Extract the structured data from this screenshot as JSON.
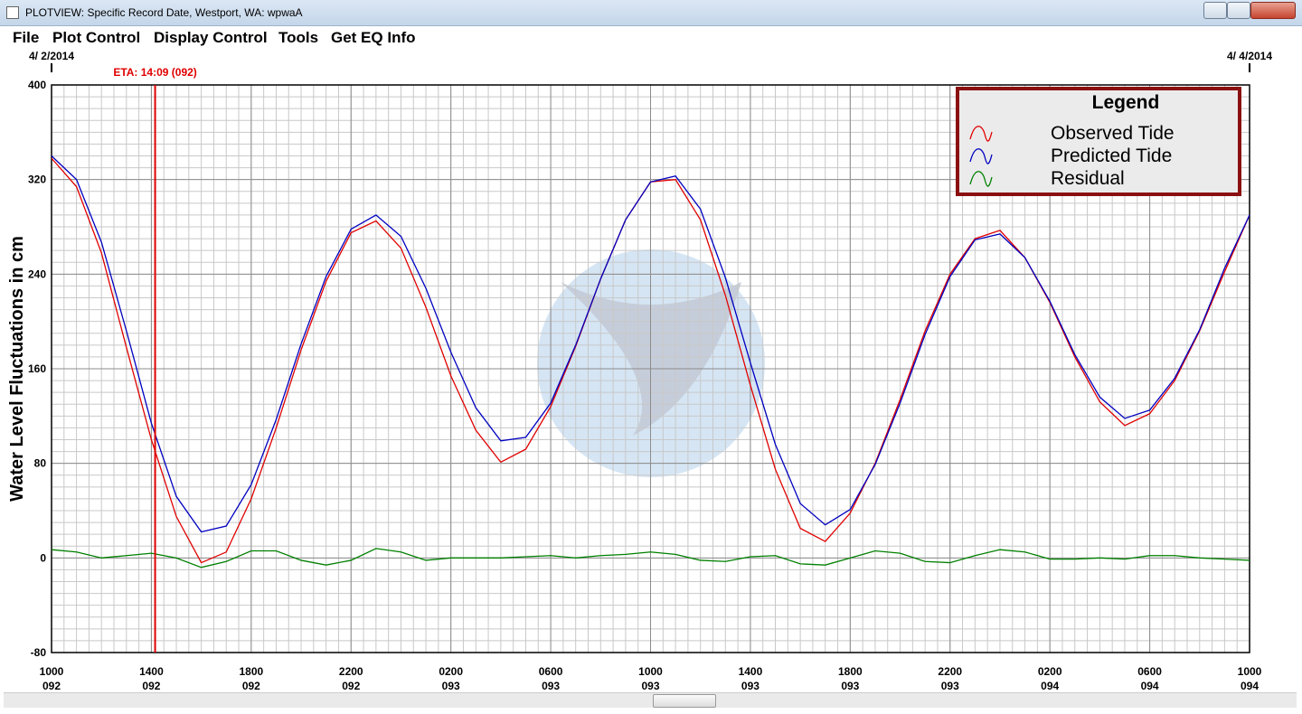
{
  "window": {
    "title": "PLOTVIEW: Specific Record Date, Westport, WA: wpwaA"
  },
  "menu": [
    "File",
    "Plot Control",
    "Display Control",
    "Tools",
    "Get EQ Info"
  ],
  "chart_data": {
    "type": "line",
    "ylabel": "Water Level Fluctuations in cm",
    "start_date": "4/ 2/2014",
    "end_date": "4/ 4/2014",
    "annotation": {
      "text": "ETA: 14:09 (092)",
      "x": 4.15,
      "color": "#e00000"
    },
    "x": [
      0,
      1,
      2,
      3,
      4,
      5,
      6,
      7,
      8,
      9,
      10,
      11,
      12,
      13,
      14,
      15,
      16,
      17,
      18,
      19,
      20,
      21,
      22,
      23,
      24,
      25,
      26,
      27,
      28,
      29,
      30,
      31,
      32,
      33,
      34,
      35,
      36,
      37,
      38,
      39,
      40,
      41,
      42,
      43,
      44,
      45,
      46,
      47,
      48
    ],
    "xlim": [
      0,
      48
    ],
    "xticks": [
      {
        "value": 0,
        "label": [
          "1000",
          "092"
        ]
      },
      {
        "value": 4,
        "label": [
          "1400",
          "092"
        ]
      },
      {
        "value": 8,
        "label": [
          "1800",
          "092"
        ]
      },
      {
        "value": 12,
        "label": [
          "2200",
          "092"
        ]
      },
      {
        "value": 16,
        "label": [
          "0200",
          "093"
        ]
      },
      {
        "value": 20,
        "label": [
          "0600",
          "093"
        ]
      },
      {
        "value": 24,
        "label": [
          "1000",
          "093"
        ]
      },
      {
        "value": 28,
        "label": [
          "1400",
          "093"
        ]
      },
      {
        "value": 32,
        "label": [
          "1800",
          "093"
        ]
      },
      {
        "value": 36,
        "label": [
          "2200",
          "093"
        ]
      },
      {
        "value": 40,
        "label": [
          "0200",
          "094"
        ]
      },
      {
        "value": 44,
        "label": [
          "0600",
          "094"
        ]
      },
      {
        "value": 48,
        "label": [
          "1000",
          "094"
        ]
      }
    ],
    "ylim": [
      -80,
      400
    ],
    "yticks": [
      -80,
      0,
      80,
      160,
      240,
      320,
      400
    ],
    "grid": true,
    "legend": {
      "title": "Legend",
      "position": "upper right"
    },
    "series": [
      {
        "name": "Observed Tide",
        "color": "#e00000",
        "values": [
          338,
          314,
          258,
          178,
          100,
          35,
          -4,
          5,
          50,
          110,
          176,
          234,
          275,
          285,
          262,
          212,
          154,
          108,
          81,
          92,
          128,
          179,
          236,
          286,
          318,
          320,
          286,
          222,
          146,
          75,
          25,
          14,
          38,
          80,
          134,
          192,
          240,
          270,
          277,
          254,
          216,
          170,
          132,
          112,
          122,
          150,
          192,
          242,
          290
        ]
      },
      {
        "name": "Predicted Tide",
        "color": "#0000c0",
        "values": [
          340,
          320,
          267,
          192,
          114,
          52,
          22,
          27,
          62,
          117,
          181,
          238,
          278,
          290,
          272,
          228,
          174,
          127,
          99,
          102,
          131,
          180,
          236,
          286,
          318,
          323,
          295,
          237,
          165,
          96,
          46,
          28,
          41,
          79,
          131,
          189,
          238,
          269,
          274,
          254,
          217,
          172,
          136,
          118,
          125,
          152,
          193,
          245,
          290
        ]
      },
      {
        "name": "Residual",
        "color": "#008000",
        "values": [
          7,
          5,
          0,
          2,
          4,
          0,
          -8,
          -3,
          6,
          6,
          -2,
          -6,
          -2,
          8,
          5,
          -2,
          0,
          0,
          0,
          1,
          2,
          0,
          2,
          3,
          5,
          3,
          -2,
          -3,
          1,
          2,
          -5,
          -6,
          0,
          6,
          4,
          -3,
          -4,
          2,
          7,
          5,
          -1,
          -1,
          0,
          -1,
          2,
          2,
          0,
          -1,
          -2
        ]
      }
    ]
  }
}
